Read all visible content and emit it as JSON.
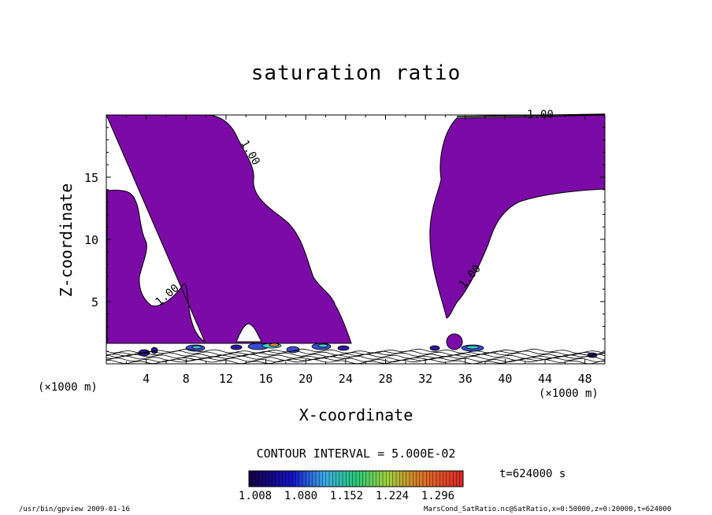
{
  "chart_data": {
    "type": "contour",
    "title": "saturation ratio",
    "xlabel": "X-coordinate",
    "ylabel": "Z-coordinate",
    "x_unit": "(×1000 m)",
    "x_ticks": [
      4,
      8,
      12,
      16,
      20,
      24,
      28,
      32,
      36,
      40,
      44,
      48
    ],
    "y_ticks": [
      5,
      10,
      15
    ],
    "xlim": [
      0,
      50
    ],
    "ylim": [
      0,
      20
    ],
    "contour_level_labels": [
      "1.00",
      "1.00",
      "1.00",
      "1.00"
    ],
    "contour_interval": "CONTOUR INTERVAL = 5.000E-02",
    "colorbar_ticks": [
      "1.008",
      "1.080",
      "1.152",
      "1.224",
      "1.296"
    ],
    "fill_color": "#7b0aa6",
    "time_label": "t=624000 s"
  },
  "footer": {
    "left": "/usr/bin/gpview   2009-01-16",
    "right": "MarsCond_SatRatio.nc@SatRatio,x=0:50000,z=0:20000,t=624000"
  }
}
